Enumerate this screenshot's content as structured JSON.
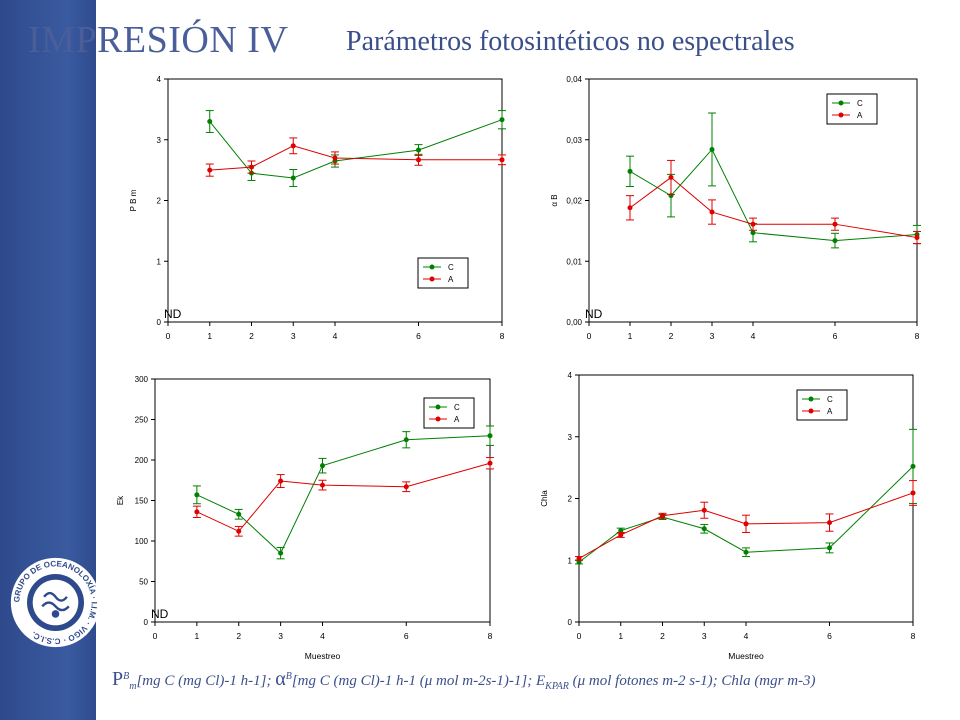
{
  "slide": {
    "title": "IMPRESIÓN IV",
    "subtitle": "Parámetros fotosintéticos no espectrales",
    "logo_text": "GRUPO DE OCEANOLOXÍA · I.I.M. · VIGO · C.S.I.C.",
    "caption": {
      "p_main": "P",
      "p_sup": "B",
      "p_sub": "m",
      "p_units": "[mg C (mg Cl)-1 h-1];",
      "alpha": "α",
      "alpha_sup": "B",
      "alpha_units": "[mg C (mg Cl)-1 h-1 (μ mol m-2s-1)-1];",
      "e": "E",
      "e_sub": "KPAR",
      "e_units": "(μ mol fotones m-2 s-1);",
      "chla": "Chla (mgr m-3)"
    }
  },
  "colors": {
    "C": "#008000",
    "A": "#e00000",
    "sidebar": "#3a5aa0",
    "title": "#4a5f9a"
  },
  "chart_data": [
    {
      "type": "line",
      "ylabel": "P B m",
      "xlabel": "",
      "x": [
        1,
        2,
        3,
        4,
        6,
        8
      ],
      "xticks": [
        "0",
        "1",
        "2",
        "3",
        "4",
        "6",
        "8"
      ],
      "xtick_values": [
        0,
        1,
        2,
        3,
        4,
        6,
        8
      ],
      "xlim": [
        0,
        8
      ],
      "ylim": [
        0,
        4
      ],
      "yticks": [
        "0",
        "1",
        "2",
        "3",
        "4"
      ],
      "ytick_values": [
        0,
        1,
        2,
        3,
        4
      ],
      "annotation": "ND",
      "legend_position": "bottom-right",
      "series": [
        {
          "name": "C",
          "values": [
            3.3,
            2.45,
            2.37,
            2.65,
            2.83,
            3.33
          ],
          "errors": [
            0.18,
            0.12,
            0.14,
            0.1,
            0.09,
            0.15
          ]
        },
        {
          "name": "A",
          "values": [
            2.5,
            2.55,
            2.9,
            2.7,
            2.67,
            2.67
          ],
          "errors": [
            0.1,
            0.1,
            0.13,
            0.1,
            0.09,
            0.08
          ]
        }
      ]
    },
    {
      "type": "line",
      "ylabel": "α B",
      "xlabel": "",
      "x": [
        1,
        2,
        3,
        4,
        6,
        8
      ],
      "xticks": [
        "0",
        "1",
        "2",
        "3",
        "4",
        "6",
        "8"
      ],
      "xtick_values": [
        0,
        1,
        2,
        3,
        4,
        6,
        8
      ],
      "xlim": [
        0,
        8
      ],
      "ylim": [
        0,
        0.04
      ],
      "yticks": [
        "0,00",
        "0,01",
        "0,02",
        "0,03",
        "0,04"
      ],
      "ytick_values": [
        0,
        0.01,
        0.02,
        0.03,
        0.04
      ],
      "annotation": "ND",
      "legend_position": "top-right",
      "series": [
        {
          "name": "C",
          "values": [
            0.0248,
            0.0208,
            0.0284,
            0.0147,
            0.0134,
            0.0144
          ],
          "errors": [
            0.0025,
            0.0035,
            0.006,
            0.0015,
            0.0012,
            0.0015
          ]
        },
        {
          "name": "A",
          "values": [
            0.0188,
            0.0238,
            0.0181,
            0.0161,
            0.0161,
            0.0139
          ],
          "errors": [
            0.002,
            0.0028,
            0.002,
            0.001,
            0.001,
            0.001
          ]
        }
      ]
    },
    {
      "type": "line",
      "ylabel": "Ek",
      "xlabel": "Muestreo",
      "x": [
        1,
        2,
        3,
        4,
        6,
        8
      ],
      "xticks": [
        "0",
        "1",
        "2",
        "3",
        "4",
        "6",
        "8"
      ],
      "xtick_values": [
        0,
        1,
        2,
        3,
        4,
        6,
        8
      ],
      "xlim": [
        0,
        8
      ],
      "ylim": [
        0,
        300
      ],
      "yticks": [
        "0",
        "50",
        "100",
        "150",
        "200",
        "250",
        "300"
      ],
      "ytick_values": [
        0,
        50,
        100,
        150,
        200,
        250,
        300
      ],
      "annotation": "ND",
      "legend_position": "top-right",
      "series": [
        {
          "name": "C",
          "values": [
            157,
            133,
            85,
            193,
            225,
            230
          ],
          "errors": [
            11,
            6,
            7,
            9,
            10,
            12
          ]
        },
        {
          "name": "A",
          "values": [
            136,
            112,
            174,
            169,
            167,
            196
          ],
          "errors": [
            7,
            6,
            8,
            6,
            6,
            7
          ]
        }
      ]
    },
    {
      "type": "line",
      "ylabel": "Chla",
      "xlabel": "Muestreo",
      "x": [
        0,
        1,
        2,
        3,
        4,
        6,
        8
      ],
      "xticks": [
        "0",
        "1",
        "2",
        "3",
        "4",
        "6",
        "8"
      ],
      "xtick_values": [
        0,
        1,
        2,
        3,
        4,
        6,
        8
      ],
      "xlim": [
        0,
        8
      ],
      "ylim": [
        0,
        4
      ],
      "yticks": [
        "0",
        "1",
        "2",
        "3",
        "4"
      ],
      "ytick_values": [
        0,
        1,
        2,
        3,
        4
      ],
      "annotation": "",
      "legend_position": "top-right",
      "series": [
        {
          "name": "C",
          "values": [
            0.97,
            1.48,
            1.7,
            1.51,
            1.13,
            1.2,
            2.52
          ],
          "errors": [
            0.03,
            0.04,
            0.04,
            0.07,
            0.07,
            0.08,
            0.6
          ]
        },
        {
          "name": "A",
          "values": [
            1.03,
            1.41,
            1.72,
            1.81,
            1.59,
            1.61,
            2.09
          ],
          "errors": [
            0.03,
            0.04,
            0.04,
            0.13,
            0.14,
            0.14,
            0.2
          ]
        }
      ]
    }
  ]
}
